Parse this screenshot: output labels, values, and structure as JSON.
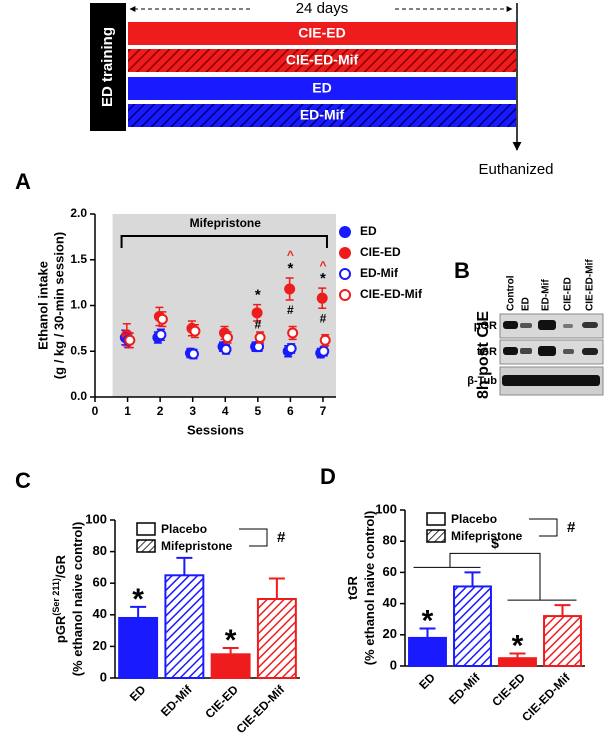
{
  "timeline": {
    "duration": "24 days",
    "phase": "ED training",
    "groups": [
      "CIE-ED",
      "CIE-ED-Mif",
      "ED",
      "ED-Mif"
    ],
    "endpoint": "Euthanized"
  },
  "chart_data": [
    {
      "type": "scatter",
      "panel": "A",
      "ylabel": [
        "Ethanol intake",
        "(g / kg / 30-min session)"
      ],
      "xlabel": "Sessions",
      "shade_label": "Mifepristone",
      "x": [
        1,
        2,
        3,
        4,
        5,
        6,
        7
      ],
      "xlim": [
        0,
        7.4
      ],
      "xticks": [
        0,
        1,
        2,
        3,
        4,
        5,
        6,
        7
      ],
      "ylim": [
        0,
        2
      ],
      "yticks": [
        {
          "value": 0,
          "label": "0.0"
        },
        {
          "value": 0.5,
          "label": "0.5"
        },
        {
          "value": 1,
          "label": "1.0"
        },
        {
          "value": 1.5,
          "label": "1.5"
        },
        {
          "value": 2,
          "label": "2.0"
        }
      ],
      "series": [
        {
          "name": "ED",
          "color": "#1a1aff",
          "marker": "filled",
          "values": [
            0.65,
            0.65,
            0.48,
            0.55,
            0.55,
            0.5,
            0.48
          ],
          "errors": [
            0.08,
            0.06,
            0.05,
            0.05,
            0.05,
            0.06,
            0.05
          ]
        },
        {
          "name": "CIE-ED",
          "color": "#ee1c1c",
          "marker": "filled",
          "values": [
            0.68,
            0.88,
            0.75,
            0.7,
            0.92,
            1.18,
            1.08
          ],
          "errors": [
            0.12,
            0.1,
            0.08,
            0.07,
            0.09,
            0.12,
            0.11
          ]
        },
        {
          "name": "ED-Mif",
          "color": "#1a1aff",
          "marker": "open",
          "values": [
            0.62,
            0.68,
            0.47,
            0.52,
            0.55,
            0.53,
            0.5
          ],
          "errors": [
            0.08,
            0.06,
            0.05,
            0.05,
            0.05,
            0.05,
            0.05
          ]
        },
        {
          "name": "CIE-ED-Mif",
          "color": "#ee1c1c",
          "marker": "open",
          "values": [
            0.62,
            0.85,
            0.72,
            0.65,
            0.65,
            0.7,
            0.62
          ],
          "errors": [
            0.08,
            0.08,
            0.07,
            0.06,
            0.06,
            0.07,
            0.06
          ]
        }
      ],
      "annotations": [
        {
          "x": 5,
          "text": "*"
        },
        {
          "x": 5,
          "text": "#"
        },
        {
          "x": 6,
          "text": "*"
        },
        {
          "x": 6,
          "text": "^"
        },
        {
          "x": 6,
          "text": "#"
        },
        {
          "x": 7,
          "text": "*"
        },
        {
          "x": 7,
          "text": "^"
        },
        {
          "x": 7,
          "text": "#"
        }
      ]
    },
    {
      "type": "bar",
      "panel": "C",
      "ylabel": [
        [
          "pGR",
          "(Ser 211)",
          "/GR"
        ],
        [
          "(% ethanol naive control)"
        ]
      ],
      "categories": [
        "ED",
        "ED-Mif",
        "CIE-ED",
        "CIE-ED-Mif"
      ],
      "values": [
        38,
        65,
        15,
        50
      ],
      "errors": [
        7,
        11,
        4,
        13
      ],
      "colors": [
        "#1a1aff",
        "#1a1aff",
        "#ee1c1c",
        "#ee1c1c"
      ],
      "hatched": [
        false,
        true,
        false,
        true
      ],
      "bar_labels": [
        "*",
        null,
        "*",
        null
      ],
      "legend": [
        "Placebo",
        "Mifepristone"
      ],
      "legend_note": "#",
      "ylim": [
        0,
        100
      ],
      "yticks": [
        0,
        20,
        40,
        60,
        80,
        100
      ]
    },
    {
      "type": "bar",
      "panel": "D",
      "ylabel": [
        [
          "tGR"
        ],
        [
          "(% ethanol naive control)"
        ]
      ],
      "categories": [
        "ED",
        "ED-Mif",
        "CIE-ED",
        "CIE-ED-Mif"
      ],
      "values": [
        18,
        51,
        5,
        32
      ],
      "errors": [
        6,
        9,
        3,
        7
      ],
      "colors": [
        "#1a1aff",
        "#1a1aff",
        "#ee1c1c",
        "#ee1c1c"
      ],
      "hatched": [
        false,
        true,
        false,
        true
      ],
      "bar_labels": [
        "*",
        null,
        "*",
        null
      ],
      "legend": [
        "Placebo",
        "Mifepristone"
      ],
      "legend_note": "#",
      "bracket_label": "$",
      "ylim": [
        0,
        100
      ],
      "yticks": [
        0,
        20,
        40,
        60,
        80,
        100
      ]
    }
  ],
  "blot": {
    "panel": "B",
    "condition": "8h post CIE",
    "lanes": [
      "Control",
      "ED",
      "ED-Mif",
      "CIE-ED",
      "CIE-ED-Mif"
    ],
    "rows": [
      "pGR",
      "tGR",
      "β-Tub"
    ]
  }
}
